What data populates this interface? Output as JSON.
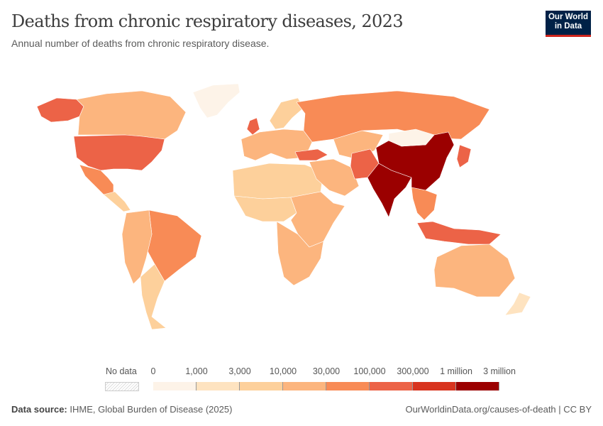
{
  "header": {
    "title": "Deaths from chronic respiratory diseases, 2023",
    "subtitle": "Annual number of deaths from chronic respiratory disease.",
    "logo": "Our World in Data"
  },
  "chart_data": {
    "type": "choropleth-map",
    "title": "Deaths from chronic respiratory diseases, 2023",
    "subtitle": "Annual number of deaths from chronic respiratory disease.",
    "legend": {
      "no_data_label": "No data",
      "tick_labels": [
        "0",
        "1,000",
        "3,000",
        "10,000",
        "30,000",
        "100,000",
        "300,000",
        "1 million",
        "3 million"
      ],
      "bins": [
        [
          0,
          1000
        ],
        [
          1000,
          3000
        ],
        [
          3000,
          10000
        ],
        [
          10000,
          30000
        ],
        [
          30000,
          100000
        ],
        [
          100000,
          300000
        ],
        [
          300000,
          1000000
        ],
        [
          1000000,
          3000000
        ]
      ],
      "colors": [
        "#fdf3e8",
        "#fee3c0",
        "#fdd09b",
        "#fcb57e",
        "#f88b56",
        "#ec6347",
        "#d8341f",
        "#9b0000"
      ],
      "placement": "bottom"
    },
    "regions": [
      {
        "name": "Greenland",
        "bin": 0
      },
      {
        "name": "Alaska",
        "bin": 5
      },
      {
        "name": "Canada",
        "bin": 3
      },
      {
        "name": "United States",
        "bin": 5
      },
      {
        "name": "Mexico",
        "bin": 4
      },
      {
        "name": "Central America",
        "bin": 2
      },
      {
        "name": "Brazil",
        "bin": 4
      },
      {
        "name": "Western South America",
        "bin": 3
      },
      {
        "name": "Southern South America",
        "bin": 2
      },
      {
        "name": "Western Europe",
        "bin": 3
      },
      {
        "name": "United Kingdom",
        "bin": 5
      },
      {
        "name": "Scandinavia",
        "bin": 2
      },
      {
        "name": "Russia",
        "bin": 4
      },
      {
        "name": "Turkey",
        "bin": 5
      },
      {
        "name": "Central Asia",
        "bin": 3
      },
      {
        "name": "North Africa",
        "bin": 2
      },
      {
        "name": "West Africa",
        "bin": 2
      },
      {
        "name": "East Africa",
        "bin": 3
      },
      {
        "name": "Southern Africa",
        "bin": 3
      },
      {
        "name": "Middle East",
        "bin": 3
      },
      {
        "name": "Pakistan",
        "bin": 5
      },
      {
        "name": "India",
        "bin": 7
      },
      {
        "name": "China",
        "bin": 7
      },
      {
        "name": "Mongolia",
        "bin": 0
      },
      {
        "name": "Southeast Asia",
        "bin": 4
      },
      {
        "name": "Indonesia",
        "bin": 5
      },
      {
        "name": "Japan",
        "bin": 5
      },
      {
        "name": "Australia",
        "bin": 3
      },
      {
        "name": "New Zealand",
        "bin": 1
      }
    ]
  },
  "footer": {
    "source_label": "Data source:",
    "source": "IHME, Global Burden of Disease (2025)",
    "url": "OurWorldinData.org/causes-of-death | CC BY"
  }
}
